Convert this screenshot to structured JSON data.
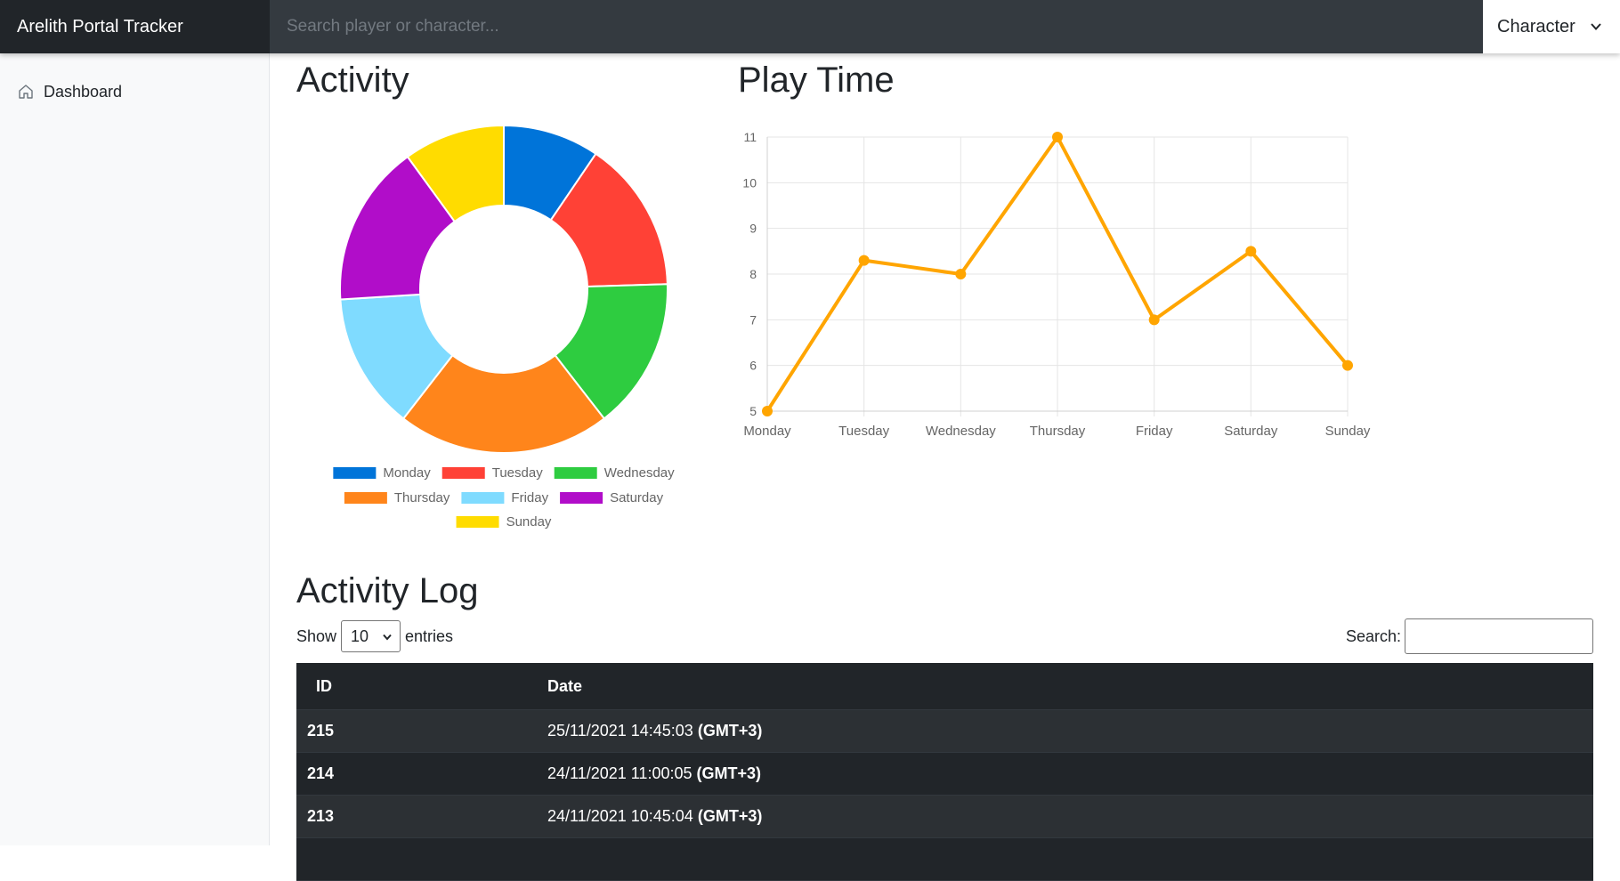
{
  "app": {
    "title": "Arelith Portal Tracker"
  },
  "navbar": {
    "search_placeholder": "Search player or character...",
    "select_value": "Character"
  },
  "sidebar": {
    "items": [
      {
        "label": "Dashboard",
        "icon": "home-icon"
      }
    ]
  },
  "activity": {
    "title": "Activity"
  },
  "playtime": {
    "title": "Play Time"
  },
  "chart_data": [
    {
      "type": "pie",
      "variant": "doughnut",
      "title": "Activity",
      "categories": [
        "Monday",
        "Tuesday",
        "Wednesday",
        "Thursday",
        "Friday",
        "Saturday",
        "Sunday"
      ],
      "values": [
        9.5,
        15,
        15,
        21,
        13.5,
        16,
        10
      ],
      "colors": [
        "#0074d9",
        "#ff4136",
        "#2ecc40",
        "#ff851b",
        "#7fdbff",
        "#b10dc9",
        "#ffdc00"
      ],
      "legend": "bottom"
    },
    {
      "type": "line",
      "title": "Play Time",
      "x": [
        "Monday",
        "Tuesday",
        "Wednesday",
        "Thursday",
        "Friday",
        "Saturday",
        "Sunday"
      ],
      "series": [
        {
          "values": [
            5,
            8.3,
            8,
            11,
            7,
            8.5,
            6
          ]
        }
      ],
      "ylim": [
        5,
        11
      ],
      "yticks": [
        5,
        6,
        7,
        8,
        9,
        10,
        11
      ],
      "grid": true,
      "color": "#ffa500"
    }
  ],
  "log": {
    "title": "Activity Log",
    "show_label": "Show",
    "entries_label": "entries",
    "length_value": "10",
    "search_label": "Search:",
    "columns": [
      "ID",
      "Date"
    ],
    "rows": [
      {
        "id": "215",
        "date": "25/11/2021 14:45:03",
        "tz": "(GMT+3)"
      },
      {
        "id": "214",
        "date": "24/11/2021 11:00:05",
        "tz": "(GMT+3)"
      },
      {
        "id": "213",
        "date": "24/11/2021 10:45:04",
        "tz": "(GMT+3)"
      }
    ]
  }
}
